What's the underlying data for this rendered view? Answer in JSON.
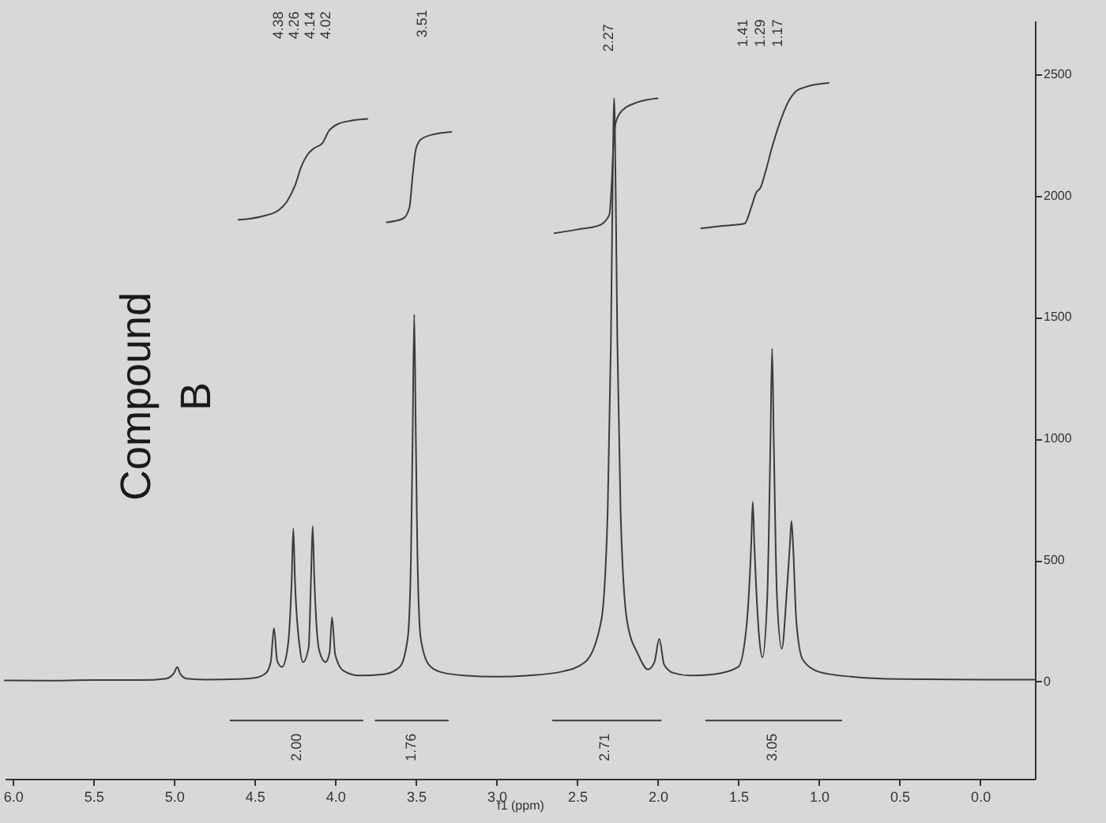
{
  "chart_data": {
    "type": "line",
    "xlabel": "f1 (ppm)",
    "xlim": [
      6.05,
      -0.34
    ],
    "xticks": [
      {
        "value": 6,
        "label": "6.0"
      },
      5.5,
      {
        "value": 5,
        "label": "5.0"
      },
      4.5,
      {
        "value": 4,
        "label": "4.0"
      },
      3.5,
      {
        "value": 3,
        "label": "3.0"
      },
      2.5,
      {
        "value": 2,
        "label": "2.0"
      },
      1.5,
      {
        "value": 1,
        "label": "1.0"
      },
      0.5,
      {
        "value": 0,
        "label": "0.0"
      }
    ],
    "ylim": [
      -400,
      2720
    ],
    "yticks": [
      0,
      500,
      1000,
      1500,
      2000,
      2500
    ],
    "series": [
      {
        "color": "#3c3c3c",
        "x": [
          6.05,
          5.8,
          5.5,
          5.2,
          5.05,
          5.0,
          4.98,
          4.96,
          4.92,
          4.8,
          4.6,
          4.5,
          4.43,
          4.4,
          4.38,
          4.36,
          4.33,
          4.295,
          4.27,
          4.26,
          4.25,
          4.22,
          4.2,
          4.165,
          4.15,
          4.14,
          4.13,
          4.1,
          4.06,
          4.035,
          4.02,
          4.0,
          3.95,
          3.85,
          3.7,
          3.6,
          3.55,
          3.53,
          3.52,
          3.51,
          3.5,
          3.49,
          3.47,
          3.42,
          3.35,
          3.2,
          3.0,
          2.8,
          2.6,
          2.45,
          2.35,
          2.31,
          2.29,
          2.28,
          2.27,
          2.26,
          2.25,
          2.23,
          2.19,
          2.12,
          2.06,
          2.02,
          1.99,
          1.96,
          1.9,
          1.8,
          1.65,
          1.5,
          1.45,
          1.42,
          1.41,
          1.4,
          1.37,
          1.35,
          1.32,
          1.3,
          1.29,
          1.28,
          1.26,
          1.23,
          1.2,
          1.18,
          1.17,
          1.16,
          1.14,
          1.1,
          1.0,
          0.8,
          0.5,
          0.0,
          -0.34
        ],
        "values": [
          5,
          4,
          6,
          6,
          12,
          35,
          60,
          30,
          12,
          8,
          10,
          15,
          35,
          80,
          220,
          85,
          60,
          140,
          420,
          630,
          420,
          140,
          80,
          140,
          430,
          640,
          430,
          130,
          80,
          120,
          265,
          110,
          45,
          25,
          30,
          60,
          180,
          520,
          1000,
          1510,
          1000,
          520,
          180,
          70,
          40,
          25,
          20,
          25,
          40,
          80,
          250,
          700,
          1400,
          2000,
          2400,
          2000,
          1400,
          700,
          250,
          110,
          50,
          80,
          175,
          70,
          35,
          25,
          30,
          60,
          220,
          560,
          740,
          560,
          180,
          100,
          350,
          1000,
          1370,
          1000,
          350,
          135,
          360,
          560,
          660,
          560,
          250,
          90,
          40,
          20,
          10,
          8,
          8
        ]
      },
      {
        "color": "#3c3c3c",
        "x": [
          4.6,
          4.45,
          4.35,
          4.3,
          4.25,
          4.21,
          4.17,
          4.13,
          4.08,
          4.04,
          3.98,
          3.9,
          3.8
        ],
        "values": [
          1900,
          1915,
          1940,
          1975,
          2040,
          2120,
          2170,
          2195,
          2215,
          2265,
          2295,
          2308,
          2315
        ]
      },
      {
        "color": "#3c3c3c",
        "x": [
          3.68,
          3.58,
          3.54,
          3.52,
          3.5,
          3.47,
          3.4,
          3.28
        ],
        "values": [
          1890,
          1905,
          1950,
          2080,
          2190,
          2230,
          2250,
          2262
        ]
      },
      {
        "color": "#3c3c3c",
        "x": [
          2.64,
          2.5,
          2.36,
          2.3,
          2.285,
          2.275,
          2.26,
          2.22,
          2.12,
          2.0
        ],
        "values": [
          1845,
          1860,
          1878,
          1920,
          2050,
          2200,
          2300,
          2350,
          2385,
          2400
        ]
      },
      {
        "color": "#3c3c3c",
        "x": [
          1.73,
          1.6,
          1.46,
          1.42,
          1.39,
          1.36,
          1.33,
          1.29,
          1.25,
          1.19,
          1.14,
          1.09,
          0.94
        ],
        "values": [
          1865,
          1875,
          1885,
          1950,
          2010,
          2035,
          2100,
          2200,
          2285,
          2385,
          2430,
          2445,
          2463
        ]
      },
      {
        "color": "#3c3c3c",
        "x": [
          4.65,
          3.83
        ],
        "values": [
          -160,
          -160
        ]
      },
      {
        "color": "#3c3c3c",
        "x": [
          3.75,
          3.3
        ],
        "values": [
          -160,
          -160
        ]
      },
      {
        "color": "#3c3c3c",
        "x": [
          2.65,
          1.98
        ],
        "values": [
          -160,
          -160
        ]
      },
      {
        "color": "#3c3c3c",
        "x": [
          1.7,
          0.86
        ],
        "values": [
          -160,
          -160
        ]
      }
    ],
    "annotations": [
      "Compound B",
      "4.38",
      "4.26",
      "4.14",
      "4.02",
      "3.51",
      "2.27",
      "1.41",
      "1.29",
      "1.17",
      {
        "text": "2.00",
        "x": 4.24,
        "y": -160
      },
      {
        "text": "1.76",
        "x": 3.53,
        "y": -160
      },
      {
        "text": "2.71",
        "x": 2.33,
        "y": -160
      },
      {
        "text": "3.05",
        "x": 1.29,
        "y": -160
      }
    ]
  }
}
